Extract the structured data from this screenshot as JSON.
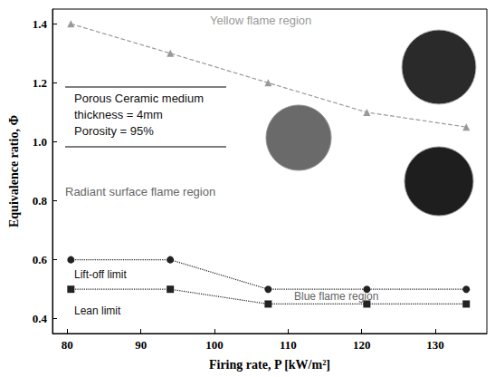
{
  "chart_data": {
    "type": "line",
    "x_label": "Firing rate, P [kW/m²]",
    "y_label": "Equivalence ratio, Φ",
    "x": [
      80.5,
      94,
      107.3,
      120.7,
      134.2
    ],
    "series": [
      {
        "name": "Yellow flame region",
        "color": "#999999",
        "marker": "triangle",
        "line_style": "dashed",
        "values": [
          1.4,
          1.3,
          1.2,
          1.1,
          1.05
        ]
      },
      {
        "name": "Lift-off limit",
        "color": "#222222",
        "marker": "circle",
        "line_style": "dotted",
        "values": [
          0.6,
          0.6,
          0.5,
          0.5,
          0.5
        ]
      },
      {
        "name": "Lean limit",
        "color": "#222222",
        "marker": "square",
        "line_style": "dotted",
        "values": [
          0.5,
          0.5,
          0.45,
          0.45,
          0.45
        ]
      }
    ],
    "annotations": [
      "Porous Ceramic medium",
      "thickness = 4mm",
      "Porosity = 95%",
      "Radiant surface flame region",
      "Blue flame region"
    ],
    "xlim": [
      78,
      137
    ],
    "xticks": [
      80,
      90,
      100,
      110,
      120,
      130
    ],
    "ylim": [
      0.35,
      1.45
    ],
    "yticks": [
      0.4,
      0.6,
      0.8,
      {
        "value": 1.0,
        "label": "1.0"
      },
      1.2,
      1.4
    ],
    "grid": false
  }
}
